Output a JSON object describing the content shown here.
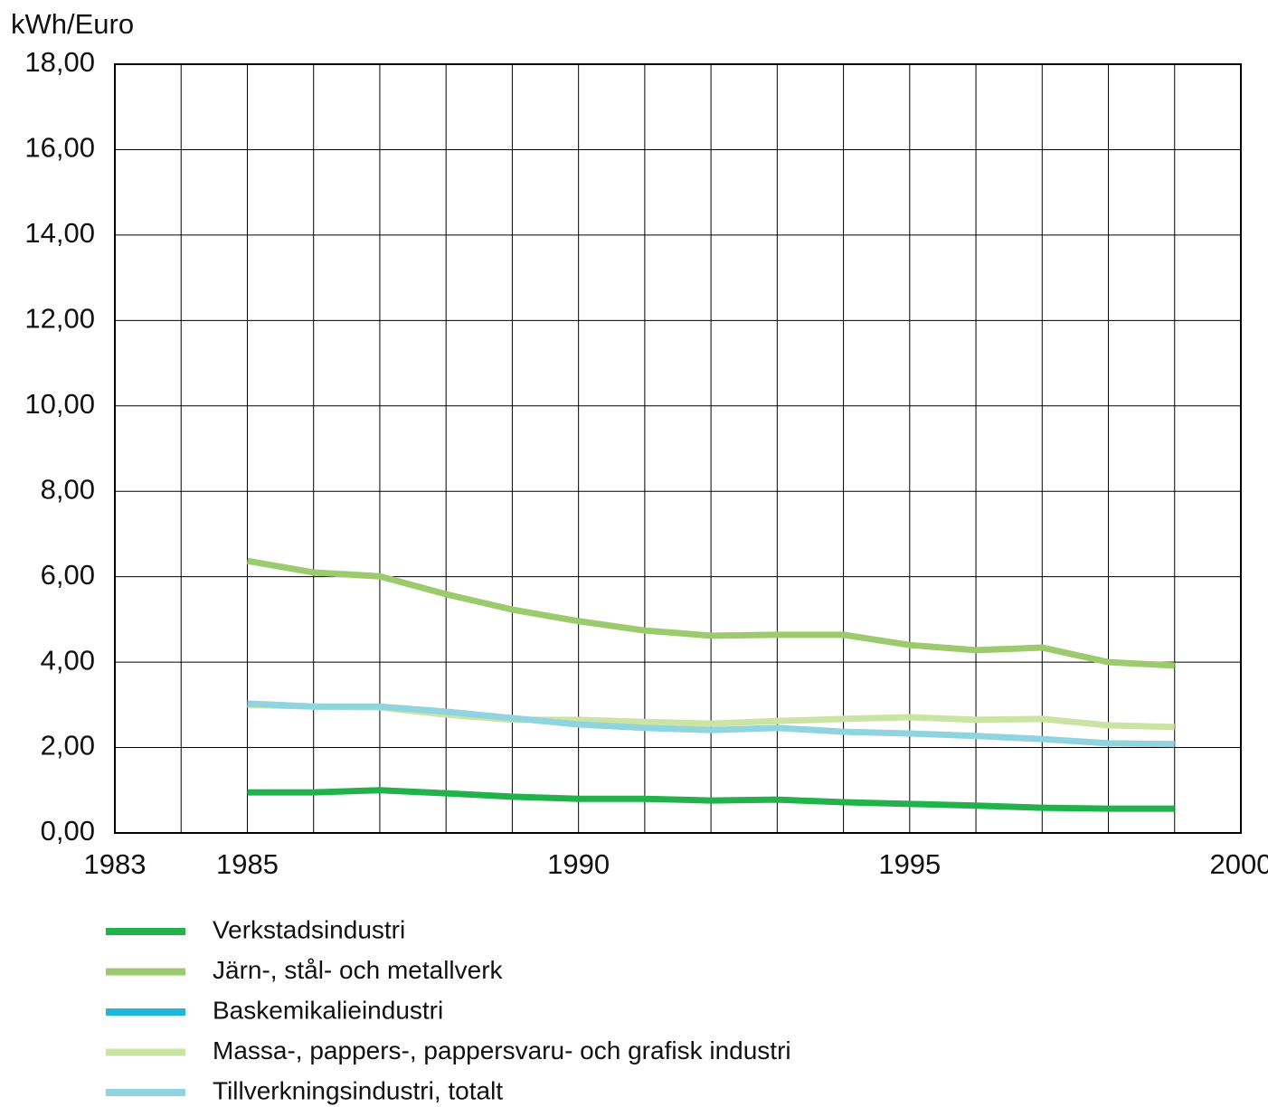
{
  "chart_data": {
    "type": "line",
    "y_label": "kWh/Euro",
    "x": [
      1985,
      1986,
      1987,
      1988,
      1989,
      1990,
      1991,
      1992,
      1993,
      1994,
      1995,
      1996,
      1997,
      1998,
      1999
    ],
    "series": [
      {
        "name": "Verkstadsindustri",
        "color": "#22b24c",
        "values": [
          0.95,
          0.95,
          1.0,
          0.93,
          0.85,
          0.8,
          0.8,
          0.76,
          0.78,
          0.72,
          0.68,
          0.64,
          0.59,
          0.57,
          0.57
        ]
      },
      {
        "name": "Järn-, stål- och metallverk",
        "color": "#9bcb6c",
        "values": [
          6.37,
          6.1,
          6.01,
          5.59,
          5.23,
          4.96,
          4.74,
          4.62,
          4.64,
          4.64,
          4.4,
          4.28,
          4.34,
          4.0,
          3.92
        ]
      },
      {
        "name": "Baskemikalieindustri",
        "color": "#1cb8d6",
        "values": [
          null,
          null,
          null,
          null,
          null,
          null,
          null,
          null,
          null,
          null,
          null,
          null,
          null,
          null,
          null
        ]
      },
      {
        "name": "Massa-, pappers-, pappersvaru- och grafisk industri",
        "color": "#cbe4a4",
        "values": [
          3.0,
          2.96,
          2.94,
          2.77,
          2.65,
          2.65,
          2.6,
          2.56,
          2.62,
          2.67,
          2.71,
          2.65,
          2.67,
          2.52,
          2.48
        ]
      },
      {
        "name": "Tillverkningsindustri, totalt",
        "color": "#90d4e0",
        "values": [
          3.03,
          2.96,
          2.96,
          2.84,
          2.69,
          2.54,
          2.46,
          2.41,
          2.46,
          2.37,
          2.33,
          2.27,
          2.2,
          2.1,
          2.08
        ]
      }
    ],
    "xlim": [
      1983,
      2000
    ],
    "xticks": [
      1983,
      1985,
      1990,
      1995,
      2000
    ],
    "xminorticks": [
      1984,
      1986,
      1987,
      1988,
      1989,
      1991,
      1992,
      1993,
      1994,
      1996,
      1997,
      1998,
      1999
    ],
    "ylim": [
      0,
      18
    ],
    "yticks": [
      {
        "value": 0,
        "label": "0,00"
      },
      {
        "value": 2,
        "label": "2,00"
      },
      {
        "value": 4,
        "label": "4,00"
      },
      {
        "value": 6,
        "label": "6,00"
      },
      {
        "value": 8,
        "label": "8,00"
      },
      {
        "value": 10,
        "label": "10,00"
      },
      {
        "value": 12,
        "label": "12,00"
      },
      {
        "value": 14,
        "label": "14,00"
      },
      {
        "value": 16,
        "label": "16,00"
      },
      {
        "value": 18,
        "label": "18,00"
      }
    ],
    "grid": true
  }
}
